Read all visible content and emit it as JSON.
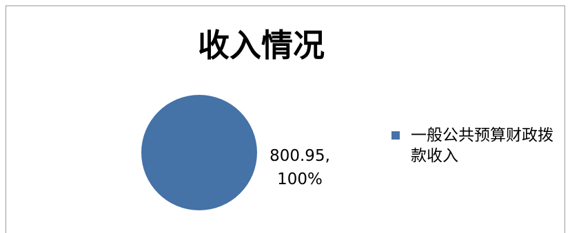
{
  "chart_data": {
    "type": "pie",
    "title": "收入情况",
    "slices": [
      {
        "label": "一般公共预算财政拨款收入",
        "value": 800.95,
        "percent": "100%",
        "color": "#4572a7"
      }
    ],
    "data_labels": [
      {
        "value_text": "800.95,",
        "percent_text": "100%"
      }
    ],
    "legend_position": "right"
  }
}
